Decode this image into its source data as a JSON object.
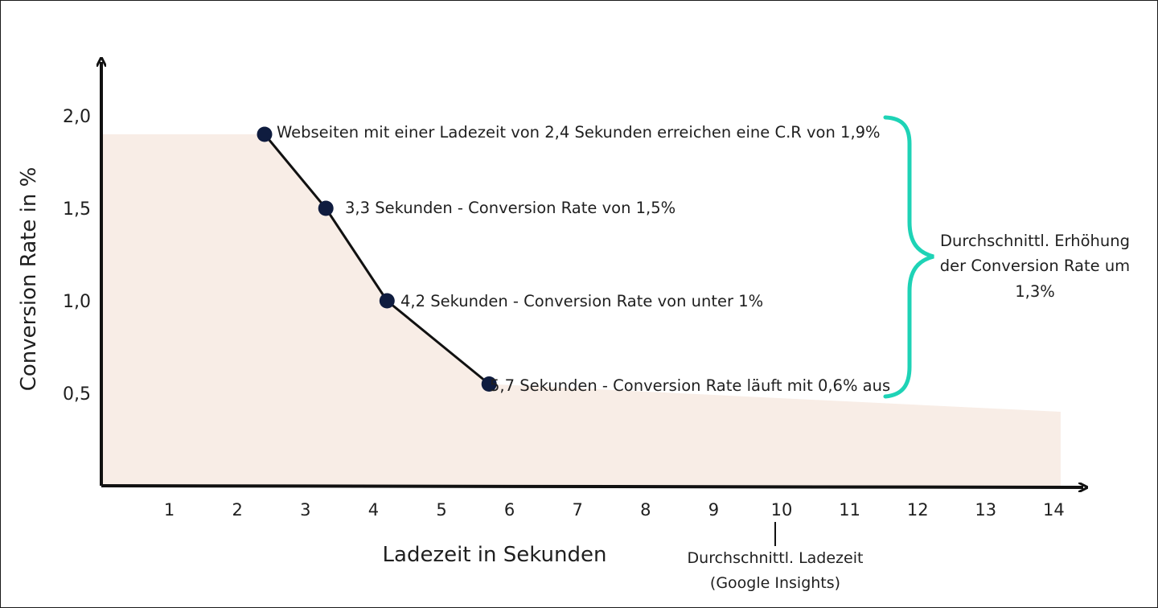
{
  "colors": {
    "background": "#ffffff",
    "area_fill": "#f8ede6",
    "line": "#111111",
    "point": "#0f1c3f",
    "brace": "#1ed3b6",
    "axis": "#111111",
    "text": "#1f1f1f"
  },
  "chart_data": {
    "type": "line",
    "xlabel": "Ladezeit in Sekunden",
    "ylabel": "Conversion Rate in %",
    "x_ticks": [
      "1",
      "2",
      "3",
      "4",
      "5",
      "6",
      "7",
      "8",
      "9",
      "10",
      "11",
      "12",
      "13",
      "14"
    ],
    "y_ticks": [
      "0,5",
      "1,0",
      "1,5",
      "2,0"
    ],
    "xlim": [
      0,
      14.9
    ],
    "ylim": [
      0,
      2.2
    ],
    "grid": false,
    "series": [
      {
        "x": [
          2.4,
          3.3,
          4.2,
          5.7
        ],
        "y": [
          1.9,
          1.5,
          1.0,
          0.55
        ]
      }
    ],
    "area": {
      "x": [
        0,
        2.4,
        3.3,
        4.2,
        5.7,
        14.1
      ],
      "y": [
        1.9,
        1.9,
        1.5,
        1.0,
        0.55,
        0.4
      ]
    },
    "annotations": [
      "Webseiten mit einer Ladezeit von 2,4 Sekunden erreichen eine C.R von 1,9%",
      "3,3 Sekunden - Conversion Rate von 1,5%",
      "4,2 Sekunden - Conversion Rate von unter 1%",
      "5,7 Sekunden - Conversion Rate läuft mit 0,6% aus"
    ],
    "brace_label_lines": [
      "Durchschnittl. Erhöhung",
      "der Conversion Rate um",
      "1,3%"
    ],
    "average_marker": {
      "x": 10,
      "label_lines": [
        "Durchschnittl. Ladezeit",
        "(Google Insights)"
      ]
    }
  }
}
